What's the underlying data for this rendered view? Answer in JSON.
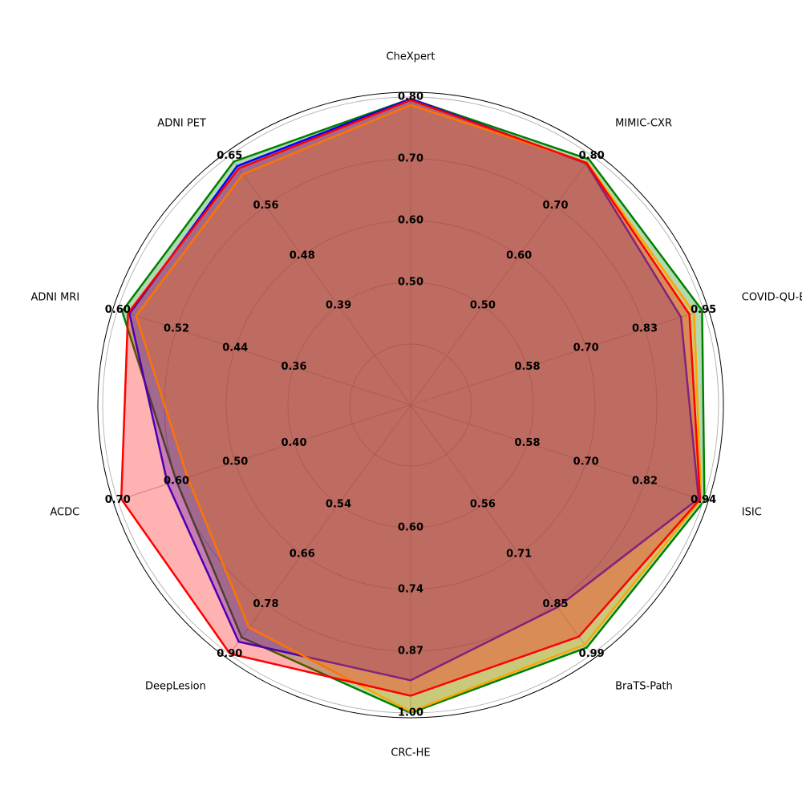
{
  "chart_data": {
    "type": "radar",
    "axes": [
      {
        "label": "CheXpert",
        "ticks": [
          "0.50",
          "0.60",
          "0.70",
          "0.80"
        ],
        "range": [
          0.4,
          0.8
        ]
      },
      {
        "label": "MIMIC-CXR",
        "ticks": [
          "0.50",
          "0.60",
          "0.70",
          "0.80"
        ],
        "range": [
          0.4,
          0.8
        ]
      },
      {
        "label": "COVID-QU-E",
        "ticks": [
          "0.58",
          "0.70",
          "0.83",
          "0.95"
        ],
        "range": [
          0.45,
          0.95
        ]
      },
      {
        "label": "ISIC",
        "ticks": [
          "0.58",
          "0.70",
          "0.82",
          "0.94"
        ],
        "range": [
          0.46,
          0.94
        ]
      },
      {
        "label": "BraTS-Path",
        "ticks": [
          "0.56",
          "0.71",
          "0.85",
          "0.99"
        ],
        "range": [
          0.42,
          0.99
        ]
      },
      {
        "label": "CRC-HE",
        "ticks": [
          "0.60",
          "0.74",
          "0.87",
          "1.00"
        ],
        "range": [
          0.47,
          1.0
        ]
      },
      {
        "label": "DeepLesion",
        "ticks": [
          "0.54",
          "0.66",
          "0.78",
          "0.90"
        ],
        "range": [
          0.42,
          0.9
        ]
      },
      {
        "label": "ACDC",
        "ticks": [
          "0.40",
          "0.50",
          "0.60",
          "0.70"
        ],
        "range": [
          0.3,
          0.7
        ]
      },
      {
        "label": "ADNI MRI",
        "ticks": [
          "0.36",
          "0.44",
          "0.52",
          "0.60"
        ],
        "range": [
          0.28,
          0.6
        ]
      },
      {
        "label": "ADNI PET",
        "ticks": [
          "0.39",
          "0.48",
          "0.56",
          "0.65"
        ],
        "range": [
          0.3,
          0.65
        ]
      }
    ],
    "series": [
      {
        "color": "#008000",
        "fill_opacity": 0.3,
        "values": [
          0.797,
          0.793,
          0.947,
          0.942,
          0.971,
          1.0,
          0.86,
          0.6,
          0.594,
          0.64
        ]
      },
      {
        "color": "#0000ff",
        "fill_opacity": 0.3,
        "values": [
          0.797,
          0.785,
          0.902,
          0.93,
          0.856,
          0.93,
          0.87,
          0.615,
          0.584,
          0.632
        ]
      },
      {
        "color": "#ffa500",
        "fill_opacity": 0.3,
        "values": [
          0.787,
          0.787,
          0.93,
          0.935,
          0.963,
          0.997,
          0.836,
          0.581,
          0.575,
          0.618
        ]
      },
      {
        "color": "#ff0000",
        "fill_opacity": 0.3,
        "values": [
          0.795,
          0.786,
          0.92,
          0.933,
          0.94,
          0.963,
          0.899,
          0.694,
          0.586,
          0.628
        ]
      }
    ],
    "grid": true,
    "legend": null
  }
}
